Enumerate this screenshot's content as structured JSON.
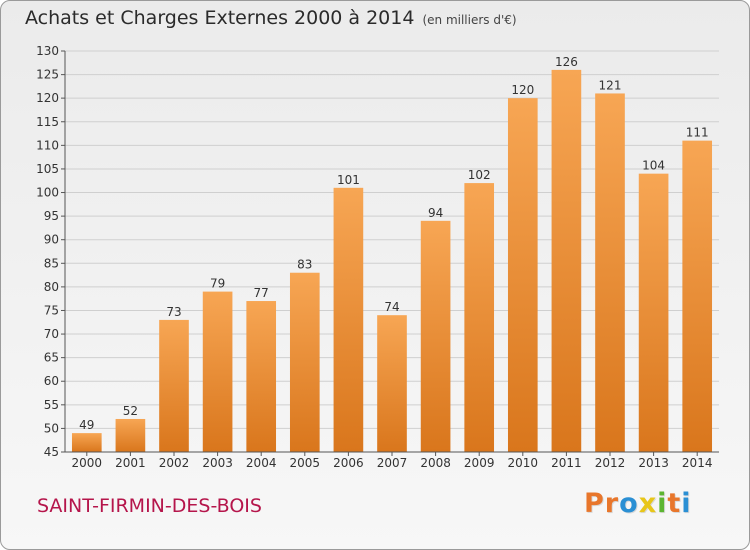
{
  "header": {
    "title": "Achats et Charges Externes 2000 à 2014",
    "unit": "(en milliers d'€)"
  },
  "footer": {
    "commune": "SAINT-FIRMIN-DES-BOIS",
    "logo": "Proxiti"
  },
  "colors": {
    "bar_top": "#f7a654",
    "bar_bottom": "#d9761c",
    "commune_text": "#b5154b",
    "logo_letters": [
      "#e8762b",
      "#e8762b",
      "#2a8fd4",
      "#e8c619",
      "#5cb531",
      "#e8762b",
      "#2a8fd4"
    ]
  },
  "chart_data": {
    "type": "bar",
    "title": "Achats et Charges Externes 2000 à 2014",
    "subtitle": "(en milliers d'€)",
    "categories": [
      "2000",
      "2001",
      "2002",
      "2003",
      "2004",
      "2005",
      "2006",
      "2007",
      "2008",
      "2009",
      "2010",
      "2011",
      "2012",
      "2013",
      "2014"
    ],
    "values": [
      49,
      52,
      73,
      79,
      77,
      83,
      101,
      74,
      94,
      102,
      120,
      126,
      121,
      104,
      111
    ],
    "ylim": [
      45,
      130
    ],
    "yticks": [
      45,
      50,
      55,
      60,
      65,
      70,
      75,
      80,
      85,
      90,
      95,
      100,
      105,
      110,
      115,
      120,
      125,
      130
    ],
    "grid": true,
    "xlabel": "",
    "ylabel": ""
  }
}
